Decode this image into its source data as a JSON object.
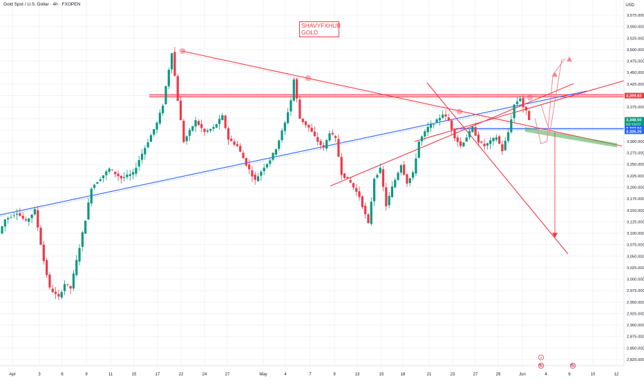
{
  "header": {
    "symbol_title": "Gold Spot / U.S. Dollar · 4h · FXOPEN",
    "currency": "USD"
  },
  "watermark": {
    "line1": "SHAVYFXHUB",
    "line2": "GOLD"
  },
  "colors": {
    "up": "#089981",
    "down": "#f23645",
    "trend_blue": "#2962ff",
    "trend_red": "#f23645",
    "support_green": "#4caf50",
    "grid": "#f0f3fa"
  },
  "events_icons": [
    "lightning-event-icon",
    "us-flag-event-icon",
    "us-flag-event-icon"
  ],
  "chart_data": {
    "type": "candlestick",
    "title": "Gold Spot / U.S. Dollar · 4h · FXOPEN",
    "ylim": [
      2800,
      3600
    ],
    "y_ticks": [
      3575,
      3550,
      3525,
      3500,
      3475,
      3450,
      3425,
      3400,
      3375,
      3350,
      3325,
      3300,
      3275,
      3250,
      3225,
      3200,
      3175,
      3150,
      3125,
      3100,
      3075,
      3050,
      3025,
      3000,
      2975,
      2950,
      2925,
      2900,
      2875,
      2850,
      2825
    ],
    "x_ticks": [
      "Apr",
      "3",
      "6",
      "9",
      "11",
      "15",
      "17",
      "22",
      "24",
      "27",
      "May",
      "4",
      "7",
      "9",
      "13",
      "15",
      "18",
      "21",
      "23",
      "27",
      "29",
      "Jun",
      "4",
      "6",
      "10",
      "12"
    ],
    "price_labels": [
      {
        "value": "3,399.83",
        "color": "#f23645"
      },
      {
        "value": "3,348.50",
        "sub": "03:19:07",
        "color": "#089981"
      },
      {
        "value": "3,327.94",
        "color": "#2962ff"
      },
      {
        "value": "3,326.25",
        "color": "#2962ff"
      }
    ],
    "path": [
      [
        0,
        3100
      ],
      [
        2,
        3130
      ],
      [
        6,
        3145
      ],
      [
        9,
        3125
      ],
      [
        12,
        3150
      ],
      [
        15,
        3040
      ],
      [
        17,
        2980
      ],
      [
        20,
        2960
      ],
      [
        22,
        2990
      ],
      [
        24,
        2980
      ],
      [
        27,
        3070
      ],
      [
        29,
        3130
      ],
      [
        31,
        3200
      ],
      [
        34,
        3220
      ],
      [
        37,
        3240
      ],
      [
        39,
        3230
      ],
      [
        41,
        3220
      ],
      [
        45,
        3230
      ],
      [
        47,
        3260
      ],
      [
        50,
        3300
      ],
      [
        53,
        3340
      ],
      [
        55,
        3380
      ],
      [
        56,
        3420
      ],
      [
        58,
        3495
      ],
      [
        60,
        3390
      ],
      [
        62,
        3300
      ],
      [
        66,
        3345
      ],
      [
        69,
        3320
      ],
      [
        72,
        3330
      ],
      [
        75,
        3355
      ],
      [
        77,
        3305
      ],
      [
        80,
        3290
      ],
      [
        83,
        3250
      ],
      [
        86,
        3215
      ],
      [
        89,
        3245
      ],
      [
        91,
        3260
      ],
      [
        93,
        3285
      ],
      [
        96,
        3340
      ],
      [
        98,
        3390
      ],
      [
        99,
        3435
      ],
      [
        101,
        3350
      ],
      [
        104,
        3330
      ],
      [
        107,
        3300
      ],
      [
        109,
        3285
      ],
      [
        111,
        3320
      ],
      [
        113,
        3305
      ],
      [
        115,
        3230
      ],
      [
        118,
        3210
      ],
      [
        121,
        3180
      ],
      [
        123,
        3140
      ],
      [
        124,
        3120
      ],
      [
        126,
        3220
      ],
      [
        128,
        3240
      ],
      [
        130,
        3160
      ],
      [
        132,
        3200
      ],
      [
        135,
        3250
      ],
      [
        137,
        3210
      ],
      [
        139,
        3230
      ],
      [
        141,
        3300
      ],
      [
        144,
        3330
      ],
      [
        147,
        3345
      ],
      [
        149,
        3360
      ],
      [
        151,
        3345
      ],
      [
        153,
        3310
      ],
      [
        155,
        3290
      ],
      [
        157,
        3310
      ],
      [
        159,
        3330
      ],
      [
        161,
        3300
      ],
      [
        163,
        3290
      ],
      [
        165,
        3300
      ],
      [
        167,
        3310
      ],
      [
        169,
        3280
      ],
      [
        171,
        3320
      ],
      [
        173,
        3380
      ],
      [
        175,
        3395
      ],
      [
        176,
        3375
      ],
      [
        177,
        3365
      ],
      [
        178,
        3348.5
      ]
    ],
    "proj_points": [
      [
        179,
        3350
      ],
      [
        181,
        3295
      ],
      [
        183,
        3300
      ],
      [
        185,
        3445
      ],
      [
        189,
        3480
      ]
    ]
  }
}
